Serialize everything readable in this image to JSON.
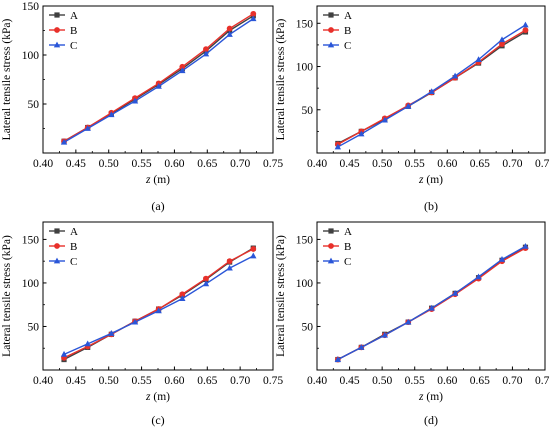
{
  "figure": {
    "background": "#ffffff"
  },
  "styles": {
    "A": {
      "color": "#404040",
      "marker": "square"
    },
    "B": {
      "color": "#e8302a",
      "marker": "circle"
    },
    "C": {
      "color": "#2a56d8",
      "marker": "triangle"
    }
  },
  "chart_data": [
    {
      "type": "line",
      "panel_label": "(a)",
      "xlabel_var": "z",
      "xlabel_unit": " (m)",
      "ylabel": "Lateral tensile stress (kPa)",
      "xlim": [
        0.4,
        0.75
      ],
      "ylim": [
        0,
        150
      ],
      "xticks": [
        "0.40",
        "0.45",
        "0.50",
        "0.55",
        "0.60",
        "0.65",
        "0.70",
        "0.75"
      ],
      "yticks": [
        "50",
        "100",
        "150"
      ],
      "grid": false,
      "legend_position": "top-left",
      "x": [
        0.432,
        0.468,
        0.504,
        0.54,
        0.576,
        0.612,
        0.648,
        0.684,
        0.72
      ],
      "series": [
        {
          "name": "A",
          "values": [
            12,
            26,
            40,
            55,
            70,
            86,
            104,
            125,
            140
          ]
        },
        {
          "name": "B",
          "values": [
            12,
            26,
            41,
            56,
            71,
            88,
            106,
            127,
            142
          ]
        },
        {
          "name": "C",
          "values": [
            11,
            25,
            39,
            53,
            68,
            84,
            101,
            121,
            137
          ]
        }
      ]
    },
    {
      "type": "line",
      "panel_label": "(b)",
      "xlabel_var": "z",
      "xlabel_unit": " (m)",
      "ylabel": "Lateral tensile stress (kPa)",
      "xlim": [
        0.4,
        0.75
      ],
      "ylim": [
        0,
        170
      ],
      "xticks": [
        "0.40",
        "0.45",
        "0.50",
        "0.55",
        "0.60",
        "0.65",
        "0.70",
        "0.75"
      ],
      "yticks": [
        "50",
        "100",
        "150"
      ],
      "grid": false,
      "legend_position": "top-left",
      "x": [
        0.432,
        0.468,
        0.504,
        0.54,
        0.576,
        0.612,
        0.648,
        0.684,
        0.72
      ],
      "series": [
        {
          "name": "A",
          "values": [
            11,
            25,
            39,
            54,
            70,
            87,
            104,
            124,
            140
          ]
        },
        {
          "name": "B",
          "values": [
            10,
            25,
            40,
            55,
            70,
            87,
            105,
            126,
            142
          ]
        },
        {
          "name": "C",
          "values": [
            7,
            22,
            38,
            54,
            71,
            89,
            108,
            131,
            148
          ]
        }
      ]
    },
    {
      "type": "line",
      "panel_label": "(c)",
      "xlabel_var": "z",
      "xlabel_unit": " (m)",
      "ylabel": "Lateral tensile stress (kPa)",
      "xlim": [
        0.4,
        0.75
      ],
      "ylim": [
        0,
        170
      ],
      "xticks": [
        "0.40",
        "0.45",
        "0.50",
        "0.55",
        "0.60",
        "0.65",
        "0.70",
        "0.75"
      ],
      "yticks": [
        "50",
        "100",
        "150"
      ],
      "grid": false,
      "legend_position": "top-left",
      "x": [
        0.432,
        0.468,
        0.504,
        0.54,
        0.576,
        0.612,
        0.648,
        0.684,
        0.72
      ],
      "series": [
        {
          "name": "A",
          "values": [
            12,
            26,
            41,
            56,
            70,
            86,
            104,
            124,
            140
          ]
        },
        {
          "name": "B",
          "values": [
            14,
            27,
            41,
            56,
            70,
            87,
            105,
            125,
            139
          ]
        },
        {
          "name": "C",
          "values": [
            18,
            30,
            42,
            55,
            68,
            82,
            99,
            117,
            131
          ]
        }
      ]
    },
    {
      "type": "line",
      "panel_label": "(d)",
      "xlabel_var": "z",
      "xlabel_unit": " (m)",
      "ylabel": "Lateral tensile stress (kPa)",
      "xlim": [
        0.4,
        0.75
      ],
      "ylim": [
        0,
        170
      ],
      "xticks": [
        "0.40",
        "0.45",
        "0.50",
        "0.55",
        "0.60",
        "0.65",
        "0.70",
        "0.75"
      ],
      "yticks": [
        "50",
        "100",
        "150"
      ],
      "grid": false,
      "legend_position": "top-left",
      "x": [
        0.432,
        0.468,
        0.504,
        0.54,
        0.576,
        0.612,
        0.648,
        0.684,
        0.72
      ],
      "series": [
        {
          "name": "A",
          "values": [
            12,
            26,
            41,
            55,
            71,
            88,
            106,
            126,
            141
          ]
        },
        {
          "name": "B",
          "values": [
            12,
            26,
            40,
            55,
            70,
            87,
            105,
            125,
            140
          ]
        },
        {
          "name": "C",
          "values": [
            12,
            26,
            40,
            55,
            71,
            88,
            107,
            127,
            142
          ]
        }
      ]
    }
  ]
}
